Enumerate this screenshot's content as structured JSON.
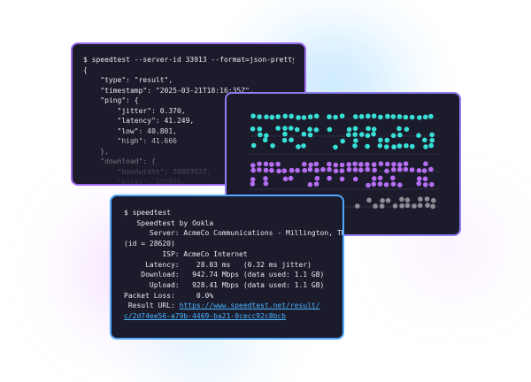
{
  "colors": {
    "terminal_bg": "#1b1b2c",
    "text": "#e8e8f0",
    "link": "#49b6ff",
    "border_purple": "#9d6bf0",
    "border_blue": "#50a7ff",
    "dot_cyan": "#37e0d6",
    "dot_purple": "#b56df2",
    "dot_gray": "#8c8c95"
  },
  "json_terminal": {
    "lines": [
      "$ speedtest --server-id 33913 --format=json-pretty",
      "{",
      "    \"type\": \"result\",",
      "    \"timestamp\": \"2025-03-21T18:16:35Z\",",
      "    \"ping\": {",
      "        \"jitter\": 0.370,",
      "        \"latency\": 41.249,",
      "        \"low\": 40.801,",
      "        \"high\": 41.666",
      "    },",
      "    \"download\": {",
      "        \"bandwidth\": 26893927,",
      "        \"bytes\": 265860,"
    ]
  },
  "dot_chart": {
    "icons": [
      "dot-icon"
    ]
  },
  "cli_terminal": {
    "lines": [
      "$ speedtest",
      "",
      "   Speedtest by Ookla",
      "",
      "      Server: AcmeCo Communications - Millington, TN",
      "(id = 28620)",
      "         ISP: AcmeCo Internet",
      "     Latency:    28.03 ms   (0.32 ms jitter)",
      "    Download:   942.74 Mbps (data used: 1.1 GB)",
      "      Upload:   928.41 Mbps (data used: 1.1 GB)",
      "Packet Loss:     0.0%"
    ],
    "result_label": " Result URL: ",
    "result_url_line1": "https://www.speedtest.net/result/",
    "result_url_line2": "c/2d74ee56-a79b-4469-ba21-0cecc92c8bcb"
  }
}
